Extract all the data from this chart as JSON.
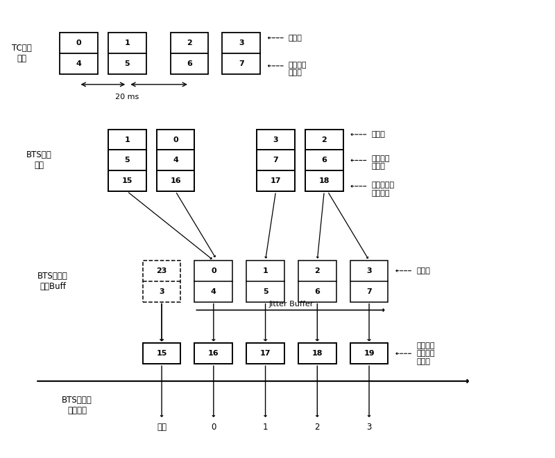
{
  "bg_color": "#ffffff",
  "row1_label": "TC发出\n数据",
  "row2_label": "BTS接收\n数据",
  "row3_label": "BTS将数据\n放入Buff",
  "row4_label": "BTS向空口\n发送数据",
  "ann1_top": "帧序号",
  "ann1_bot": "发送端时\n间标签",
  "ann2_top": "帧序号",
  "ann2_mid": "发送端时\n间标签",
  "ann2_bot": "接收端送的\n时间标签",
  "ann3": "帧序号",
  "ann4": "接收端再\n发送的时\n间标签",
  "jitter_label": "Jitter Buffer",
  "ms_label": "20 ms",
  "fill_label": "填充",
  "bottom_labels": [
    "填充",
    "0",
    "1",
    "2",
    "3"
  ],
  "row1_tops": [
    "0",
    "1",
    "2",
    "3"
  ],
  "row1_bots": [
    "4",
    "5",
    "6",
    "7"
  ],
  "row2_tops": [
    "1",
    "0",
    "3",
    "2"
  ],
  "row2_mids": [
    "5",
    "4",
    "7",
    "6"
  ],
  "row2_bots": [
    "15",
    "16",
    "17",
    "18"
  ],
  "row3_tops": [
    "23",
    "0",
    "1",
    "2",
    "3"
  ],
  "row3_bots": [
    "3",
    "4",
    "5",
    "6",
    "7"
  ],
  "row3_dashed": [
    true,
    false,
    false,
    false,
    false
  ],
  "row4_vals": [
    "15",
    "16",
    "17",
    "18",
    "19"
  ]
}
